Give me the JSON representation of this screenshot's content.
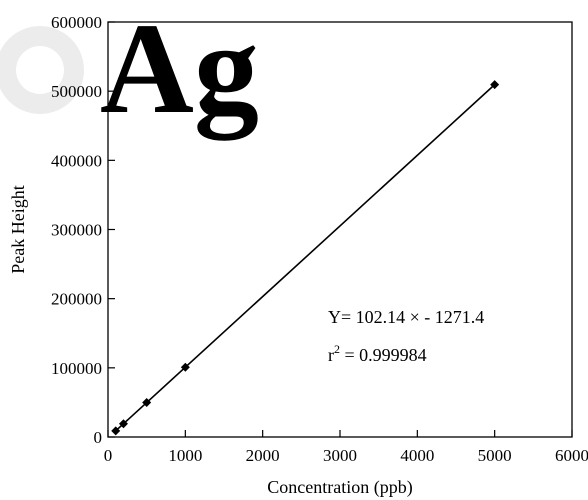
{
  "chart_data": {
    "type": "scatter",
    "xlabel": "Concentration (ppb)",
    "ylabel": "Peak Height",
    "xlim": [
      0,
      6000
    ],
    "ylim": [
      0,
      600000
    ],
    "x_ticks": [
      0,
      1000,
      2000,
      3000,
      4000,
      5000,
      6000
    ],
    "y_ticks": [
      0,
      100000,
      200000,
      300000,
      400000,
      500000,
      600000
    ],
    "x_tick_labels": [
      "0",
      "1000",
      "2000",
      "3000",
      "4000",
      "5000",
      "6000"
    ],
    "y_tick_labels": [
      "0",
      "100000",
      "200000",
      "300000",
      "400000",
      "500000",
      "600000"
    ],
    "grid": false,
    "legend": "none",
    "series": [
      {
        "x": [
          100,
          200,
          500,
          1000,
          5000
        ],
        "y": [
          8943,
          19157,
          49800,
          100869,
          509429
        ],
        "marker": "diamond",
        "color": "#000000"
      }
    ],
    "fit_line": {
      "slope": 102.14,
      "intercept": -1271.4,
      "x_range": [
        100,
        5000
      ]
    },
    "annotations": {
      "equation": "Y= 102.14 × - 1271.4",
      "r2_prefix": "r",
      "r2_sup": "2",
      "r2_value": " = 0.999984"
    }
  }
}
